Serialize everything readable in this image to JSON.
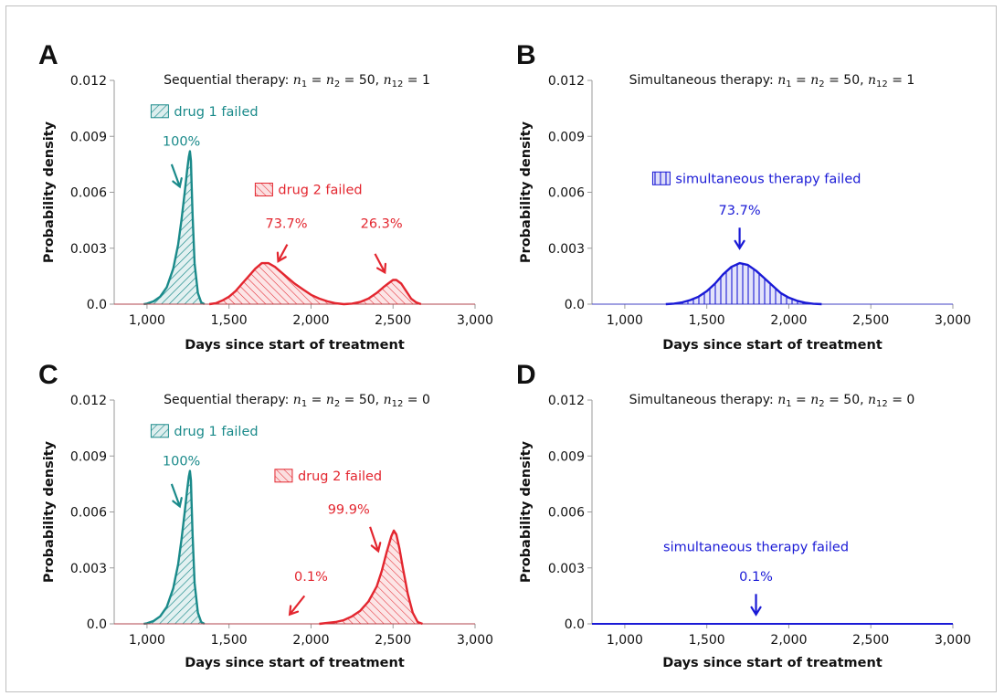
{
  "colors": {
    "drug1": "#1a8a8a",
    "drug2": "#e3262f",
    "simultaneous": "#1a1ad6",
    "axis": "#9a9a9a",
    "text": "#111111"
  },
  "chart_data": [
    {
      "id": "A",
      "type": "area",
      "panel_label": "A",
      "title": {
        "prefix": "Sequential therapy:  ",
        "var_n1": "n",
        "sub1": "1",
        "eq1": " = ",
        "var_n2": "n",
        "sub2": "2",
        "eq2": " = 50,  ",
        "var_n12": "n",
        "sub12": "12",
        "eq3": " = 1"
      },
      "xlabel": "Days since start of treatment",
      "ylabel": "Probability density",
      "xlim": [
        800,
        3000
      ],
      "ylim": [
        0,
        0.012
      ],
      "xticks": [
        1000,
        1500,
        2000,
        2500,
        3000
      ],
      "xtick_labels": [
        "1,000",
        "1,500",
        "2,000",
        "2,500",
        "3,000"
      ],
      "yticks": [
        0,
        0.003,
        0.006,
        0.009,
        0.012
      ],
      "ytick_labels": [
        "0.0",
        "0.003",
        "0.006",
        "0.009",
        "0.012"
      ],
      "series": [
        {
          "name": "drug 1 failed",
          "color_key": "drug1",
          "hatch": "diag-right",
          "x": [
            980,
            1000,
            1040,
            1080,
            1120,
            1160,
            1190,
            1210,
            1230,
            1245,
            1255,
            1262,
            1268,
            1272,
            1278,
            1290,
            1310,
            1330,
            1350
          ],
          "y": [
            0.0,
            3e-05,
            0.00015,
            0.0004,
            0.0009,
            0.0019,
            0.0032,
            0.0045,
            0.006,
            0.0072,
            0.0079,
            0.0082,
            0.0077,
            0.0065,
            0.0048,
            0.0022,
            0.0006,
            0.0001,
            0.0
          ]
        },
        {
          "name": "drug 2 failed",
          "color_key": "drug2",
          "hatch": "diag-left",
          "x": [
            1380,
            1420,
            1460,
            1500,
            1540,
            1580,
            1620,
            1660,
            1700,
            1740,
            1780,
            1820,
            1860,
            1900,
            1950,
            2000,
            2050,
            2100,
            2150,
            2200,
            2250,
            2300,
            2350,
            2400,
            2440,
            2470,
            2500,
            2520,
            2550,
            2580,
            2610,
            2640,
            2670
          ],
          "y": [
            0.0,
            5e-05,
            0.0002,
            0.0004,
            0.0007,
            0.0011,
            0.0015,
            0.0019,
            0.0022,
            0.0022,
            0.002,
            0.0017,
            0.0014,
            0.0011,
            0.0008,
            0.0005,
            0.0003,
            0.00015,
            5e-05,
            0.0,
            3e-05,
            0.00012,
            0.0003,
            0.0006,
            0.0009,
            0.0011,
            0.0013,
            0.0013,
            0.0011,
            0.0007,
            0.0003,
            0.0001,
            0.0
          ]
        }
      ],
      "annotations": [
        {
          "kind": "legend",
          "series": 0,
          "text": "drug 1 failed",
          "x": 1025,
          "y": 0.0101
        },
        {
          "kind": "label",
          "color_key": "drug1",
          "text": "100%",
          "x": 1210,
          "y": 0.0085
        },
        {
          "kind": "arrow",
          "color_key": "drug1",
          "from": [
            1150,
            0.0075
          ],
          "to": [
            1200,
            0.0063
          ]
        },
        {
          "kind": "legend",
          "series": 1,
          "text": "drug 2 failed",
          "x": 1660,
          "y": 0.0059
        },
        {
          "kind": "label",
          "color_key": "drug2",
          "text": "73.7%",
          "x": 1850,
          "y": 0.0041
        },
        {
          "kind": "arrow",
          "color_key": "drug2",
          "from": [
            1855,
            0.0032
          ],
          "to": [
            1800,
            0.0023
          ]
        },
        {
          "kind": "label",
          "color_key": "drug2",
          "text": "26.3%",
          "x": 2430,
          "y": 0.0041
        },
        {
          "kind": "arrow",
          "color_key": "drug2",
          "from": [
            2390,
            0.0027
          ],
          "to": [
            2450,
            0.0017
          ]
        }
      ]
    },
    {
      "id": "B",
      "type": "area",
      "panel_label": "B",
      "title": {
        "prefix": "Simultaneous therapy:  ",
        "var_n1": "n",
        "sub1": "1",
        "eq1": " = ",
        "var_n2": "n",
        "sub2": "2",
        "eq2": " = 50,  ",
        "var_n12": "n",
        "sub12": "12",
        "eq3": " = 1"
      },
      "xlabel": "Days since start of treatment",
      "ylabel": "Probability density",
      "xlim": [
        800,
        3000
      ],
      "ylim": [
        0,
        0.012
      ],
      "xticks": [
        1000,
        1500,
        2000,
        2500,
        3000
      ],
      "xtick_labels": [
        "1,000",
        "1,500",
        "2,000",
        "2,500",
        "3,000"
      ],
      "yticks": [
        0,
        0.003,
        0.006,
        0.009,
        0.012
      ],
      "ytick_labels": [
        "0.0",
        "0.003",
        "0.006",
        "0.009",
        "0.012"
      ],
      "series": [
        {
          "name": "simultaneous therapy failed",
          "color_key": "simultaneous",
          "hatch": "vertical",
          "x": [
            1250,
            1300,
            1350,
            1400,
            1450,
            1500,
            1550,
            1600,
            1650,
            1700,
            1750,
            1800,
            1850,
            1900,
            1950,
            2000,
            2050,
            2100,
            2150,
            2200
          ],
          "y": [
            0.0,
            3e-05,
            0.0001,
            0.00022,
            0.0004,
            0.0007,
            0.0011,
            0.0016,
            0.002,
            0.0022,
            0.0021,
            0.0018,
            0.0014,
            0.001,
            0.0006,
            0.00035,
            0.00018,
            8e-05,
            2e-05,
            0.0
          ]
        }
      ],
      "annotations": [
        {
          "kind": "legend",
          "series": 0,
          "text": "simultaneous therapy failed",
          "x": 1170,
          "y": 0.0065
        },
        {
          "kind": "label",
          "color_key": "simultaneous",
          "text": "73.7%",
          "x": 1700,
          "y": 0.0048
        },
        {
          "kind": "arrow",
          "color_key": "simultaneous",
          "from": [
            1700,
            0.0041
          ],
          "to": [
            1700,
            0.003
          ]
        }
      ]
    },
    {
      "id": "C",
      "type": "area",
      "panel_label": "C",
      "title": {
        "prefix": "Sequential therapy:  ",
        "var_n1": "n",
        "sub1": "1",
        "eq1": " = ",
        "var_n2": "n",
        "sub2": "2",
        "eq2": " = 50,  ",
        "var_n12": "n",
        "sub12": "12",
        "eq3": " = 0"
      },
      "xlabel": "Days since start of treatment",
      "ylabel": "Probability density",
      "xlim": [
        800,
        3000
      ],
      "ylim": [
        0,
        0.012
      ],
      "xticks": [
        1000,
        1500,
        2000,
        2500,
        3000
      ],
      "xtick_labels": [
        "1,000",
        "1,500",
        "2,000",
        "2,500",
        "3,000"
      ],
      "yticks": [
        0,
        0.003,
        0.006,
        0.009,
        0.012
      ],
      "ytick_labels": [
        "0.0",
        "0.003",
        "0.006",
        "0.009",
        "0.012"
      ],
      "series": [
        {
          "name": "drug 1 failed",
          "color_key": "drug1",
          "hatch": "diag-right",
          "x": [
            980,
            1000,
            1040,
            1080,
            1120,
            1160,
            1190,
            1210,
            1230,
            1245,
            1255,
            1262,
            1268,
            1272,
            1278,
            1290,
            1310,
            1330,
            1350
          ],
          "y": [
            0.0,
            3e-05,
            0.00015,
            0.0004,
            0.0009,
            0.0019,
            0.0032,
            0.0045,
            0.006,
            0.0072,
            0.0079,
            0.0082,
            0.0077,
            0.0065,
            0.0048,
            0.0022,
            0.0006,
            0.0001,
            0.0
          ]
        },
        {
          "name": "drug 2 failed",
          "color_key": "drug2",
          "hatch": "diag-left",
          "x": [
            2050,
            2100,
            2150,
            2200,
            2250,
            2300,
            2350,
            2400,
            2430,
            2460,
            2490,
            2505,
            2520,
            2540,
            2560,
            2590,
            2620,
            2650,
            2680
          ],
          "y": [
            0.0,
            5e-05,
            0.0001,
            0.0002,
            0.0004,
            0.0007,
            0.0012,
            0.002,
            0.0028,
            0.0038,
            0.0047,
            0.005,
            0.0048,
            0.004,
            0.003,
            0.0016,
            0.0006,
            0.0001,
            0.0
          ]
        }
      ],
      "annotations": [
        {
          "kind": "legend",
          "series": 0,
          "text": "drug 1 failed",
          "x": 1025,
          "y": 0.0101
        },
        {
          "kind": "label",
          "color_key": "drug1",
          "text": "100%",
          "x": 1210,
          "y": 0.0085
        },
        {
          "kind": "arrow",
          "color_key": "drug1",
          "from": [
            1150,
            0.0075
          ],
          "to": [
            1200,
            0.0063
          ]
        },
        {
          "kind": "legend",
          "series": 1,
          "text": "drug 2 failed",
          "x": 1780,
          "y": 0.0077
        },
        {
          "kind": "label",
          "color_key": "drug2",
          "text": "99.9%",
          "x": 2230,
          "y": 0.0059
        },
        {
          "kind": "arrow",
          "color_key": "drug2",
          "from": [
            2360,
            0.0052
          ],
          "to": [
            2410,
            0.0039
          ]
        },
        {
          "kind": "label",
          "color_key": "drug2",
          "text": "0.1%",
          "x": 2000,
          "y": 0.0023
        },
        {
          "kind": "arrow",
          "color_key": "drug2",
          "from": [
            1960,
            0.0015
          ],
          "to": [
            1870,
            0.0005
          ]
        }
      ]
    },
    {
      "id": "D",
      "type": "area",
      "panel_label": "D",
      "title": {
        "prefix": "Simultaneous therapy:  ",
        "var_n1": "n",
        "sub1": "1",
        "eq1": " = ",
        "var_n2": "n",
        "sub2": "2",
        "eq2": " = 50,  ",
        "var_n12": "n",
        "sub12": "12",
        "eq3": " = 0"
      },
      "xlabel": "Days since start of treatment",
      "ylabel": "Probability density",
      "xlim": [
        800,
        3000
      ],
      "ylim": [
        0,
        0.012
      ],
      "xticks": [
        1000,
        1500,
        2000,
        2500,
        3000
      ],
      "xtick_labels": [
        "1,000",
        "1,500",
        "2,000",
        "2,500",
        "3,000"
      ],
      "yticks": [
        0,
        0.003,
        0.006,
        0.009,
        0.012
      ],
      "ytick_labels": [
        "0.0",
        "0.003",
        "0.006",
        "0.009",
        "0.012"
      ],
      "series": [
        {
          "name": "simultaneous therapy failed",
          "color_key": "simultaneous",
          "hatch": "none",
          "x": [
            800,
            3000
          ],
          "y": [
            0.0,
            0.0
          ]
        }
      ],
      "annotations": [
        {
          "kind": "label",
          "color_key": "simultaneous",
          "text": "simultaneous therapy failed",
          "x": 1800,
          "y": 0.0039
        },
        {
          "kind": "label",
          "color_key": "simultaneous",
          "text": "0.1%",
          "x": 1800,
          "y": 0.0023
        },
        {
          "kind": "arrow",
          "color_key": "simultaneous",
          "from": [
            1800,
            0.0016
          ],
          "to": [
            1800,
            0.0005
          ]
        }
      ]
    }
  ]
}
